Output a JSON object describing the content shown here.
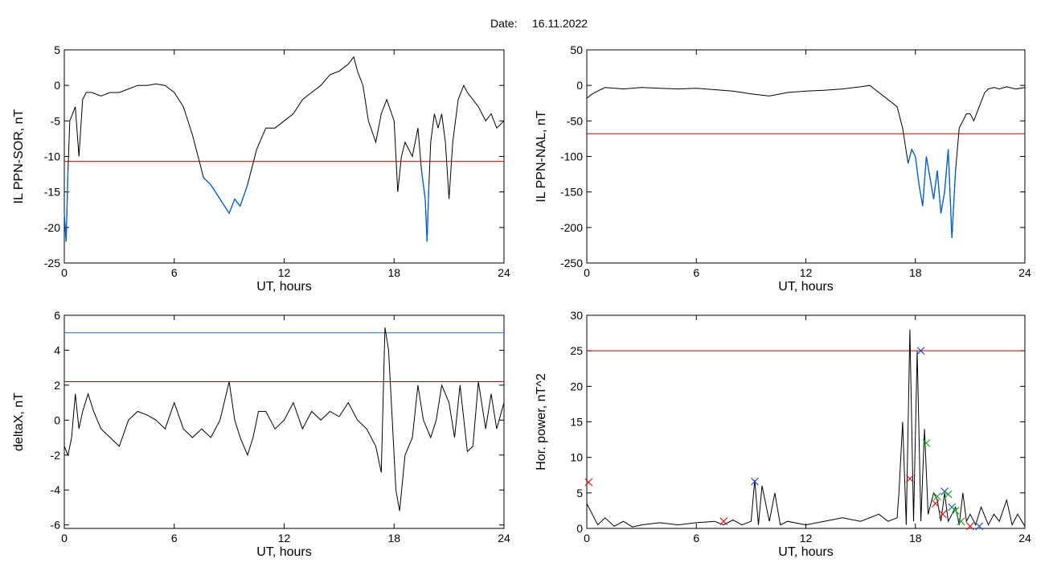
{
  "header": {
    "date_label": "Date:",
    "date_value": "16.11.2022"
  },
  "colors": {
    "trace": "#000000",
    "highlight": "#0060d0",
    "threshold_red": "#d00000",
    "threshold_blue": "#1f6fd0",
    "marker_green": "#22aa22",
    "marker_red": "#cc2222",
    "marker_blue": "#2255cc"
  },
  "chart_data": [
    {
      "type": "line",
      "title": "",
      "xlabel": "UT, hours",
      "ylabel": "IL PPN-SOR, nT",
      "xlim": [
        0,
        24
      ],
      "ylim": [
        -25,
        5
      ],
      "xticks": [
        0,
        6,
        12,
        18,
        24
      ],
      "yticks": [
        -25,
        -20,
        -15,
        -10,
        -5,
        0,
        5
      ],
      "grid": false,
      "threshold": {
        "y": -10.7,
        "color": "red"
      },
      "highlight_below": -10.7,
      "series": [
        {
          "x": [
            0,
            0.1,
            0.2,
            0.3,
            0.45,
            0.6,
            0.8,
            1.0,
            1.2,
            1.5,
            2,
            2.5,
            3,
            3.5,
            4,
            4.5,
            5,
            5.5,
            6,
            6.5,
            7,
            7.3,
            7.6,
            8,
            8.5,
            9,
            9.3,
            9.6,
            10,
            10.5,
            11,
            11.5,
            12,
            12.5,
            13,
            13.5,
            14,
            14.5,
            15,
            15.5,
            15.8,
            16,
            16.3,
            16.6,
            17,
            17.3,
            17.6,
            18,
            18.2,
            18.4,
            18.6,
            19,
            19.3,
            19.5,
            19.7,
            19.8,
            19.9,
            20,
            20.2,
            20.4,
            20.6,
            20.8,
            21,
            21.2,
            21.5,
            21.8,
            22,
            22.3,
            22.6,
            23,
            23.3,
            23.6,
            24
          ],
          "y": [
            -18,
            -22,
            -12,
            -5,
            -4,
            -3,
            -10,
            -2,
            -1,
            -1,
            -1.5,
            -1,
            -1,
            -0.5,
            0,
            0,
            0.2,
            0,
            -1,
            -3,
            -7,
            -10,
            -13,
            -14,
            -16,
            -18,
            -16,
            -17,
            -14,
            -9,
            -6,
            -6,
            -5,
            -4,
            -2,
            -1,
            0,
            1.5,
            2,
            3,
            4,
            2,
            0,
            -5,
            -8,
            -4,
            -2,
            -5,
            -15,
            -10,
            -8,
            -10,
            -6,
            -12,
            -16,
            -22,
            -14,
            -8,
            -4,
            -6,
            -4,
            -8,
            -16,
            -8,
            -2,
            0,
            -1,
            -2,
            -3,
            -5,
            -4,
            -6,
            -5
          ]
        }
      ]
    },
    {
      "type": "line",
      "title": "",
      "xlabel": "UT, hours",
      "ylabel": "IL PPN-NAL, nT",
      "xlim": [
        0,
        24
      ],
      "ylim": [
        -250,
        50
      ],
      "xticks": [
        0,
        6,
        12,
        18,
        24
      ],
      "yticks": [
        -250,
        -200,
        -150,
        -100,
        -50,
        0,
        50
      ],
      "grid": false,
      "threshold": {
        "y": -68,
        "color": "red"
      },
      "highlight_below": -68,
      "series": [
        {
          "x": [
            0,
            0.3,
            0.6,
            1,
            2,
            3,
            4,
            5,
            6,
            7,
            8,
            8.5,
            9,
            10,
            11,
            12,
            13,
            14,
            15,
            15.5,
            16,
            16.5,
            17,
            17.3,
            17.6,
            17.8,
            18,
            18.2,
            18.4,
            18.6,
            18.8,
            19,
            19.2,
            19.4,
            19.6,
            19.8,
            20,
            20.2,
            20.4,
            20.6,
            20.8,
            21,
            21.2,
            21.5,
            21.8,
            22,
            22.3,
            22.6,
            23,
            23.5,
            24
          ],
          "y": [
            -18,
            -12,
            -8,
            -3,
            -5,
            -3,
            -4,
            -5,
            -4,
            -6,
            -8,
            -10,
            -12,
            -15,
            -10,
            -8,
            -7,
            -5,
            -2,
            0,
            -10,
            -20,
            -30,
            -60,
            -110,
            -90,
            -100,
            -140,
            -170,
            -100,
            -130,
            -160,
            -120,
            -180,
            -150,
            -90,
            -215,
            -120,
            -60,
            -50,
            -40,
            -40,
            -50,
            -30,
            -10,
            -5,
            -3,
            -5,
            -2,
            -5,
            -3
          ]
        }
      ]
    },
    {
      "type": "line",
      "title": "",
      "xlabel": "UT, hours",
      "ylabel": "deltaX, nT",
      "xlim": [
        0,
        24
      ],
      "ylim": [
        -6.2,
        6
      ],
      "xticks": [
        0,
        6,
        12,
        18,
        24
      ],
      "yticks": [
        -6,
        -4,
        -2,
        0,
        2,
        4,
        6
      ],
      "grid": false,
      "thresholds": [
        {
          "y": 5.0,
          "color": "blue"
        },
        {
          "y": 2.2,
          "color": "red"
        }
      ],
      "series": [
        {
          "x": [
            0,
            0.2,
            0.4,
            0.6,
            0.8,
            1,
            1.3,
            1.6,
            2,
            2.5,
            3,
            3.5,
            4,
            4.5,
            5,
            5.5,
            6,
            6.5,
            7,
            7.5,
            8,
            8.5,
            9,
            9.3,
            9.6,
            10,
            10.3,
            10.6,
            11,
            11.5,
            12,
            12.5,
            13,
            13.5,
            14,
            14.5,
            15,
            15.5,
            16,
            16.5,
            17,
            17.3,
            17.5,
            17.7,
            17.9,
            18.1,
            18.3,
            18.6,
            19,
            19.3,
            19.6,
            20,
            20.3,
            20.6,
            21,
            21.3,
            21.6,
            22,
            22.3,
            22.6,
            23,
            23.3,
            23.6,
            24
          ],
          "y": [
            -1.5,
            -2,
            -1,
            1.5,
            -0.5,
            0.5,
            1.5,
            0.5,
            -0.5,
            -1,
            -1.5,
            0,
            0.5,
            0.3,
            0,
            -0.5,
            1,
            -0.5,
            -1,
            -0.5,
            -1,
            0,
            2.2,
            0,
            -1,
            -2,
            -1,
            0.5,
            0.5,
            -0.5,
            0,
            1,
            -0.5,
            0.5,
            0,
            0.5,
            0.2,
            1,
            0,
            -0.5,
            -1.5,
            -3,
            5.3,
            4,
            0,
            -4,
            -5.2,
            -2,
            -1,
            2,
            0,
            -1,
            0,
            2,
            1,
            -1,
            2,
            -1.8,
            -1.5,
            2.2,
            -0.5,
            1.5,
            -0.5,
            1
          ]
        }
      ]
    },
    {
      "type": "line",
      "title": "",
      "xlabel": "UT, hours",
      "ylabel": "Hor. power, nT^2",
      "xlim": [
        0,
        24
      ],
      "ylim": [
        0,
        30
      ],
      "xticks": [
        0,
        6,
        12,
        18,
        24
      ],
      "yticks": [
        0,
        5,
        10,
        15,
        20,
        25,
        30
      ],
      "grid": false,
      "threshold": {
        "y": 25,
        "color": "red"
      },
      "series": [
        {
          "x": [
            0,
            0.3,
            0.6,
            1,
            1.5,
            2,
            2.5,
            3,
            4,
            5,
            6,
            7,
            7.5,
            8,
            8.5,
            9,
            9.2,
            9.4,
            9.6,
            10,
            10.3,
            10.6,
            11,
            12,
            13,
            14,
            15,
            16,
            16.5,
            17,
            17.1,
            17.3,
            17.5,
            17.7,
            17.9,
            18.1,
            18.3,
            18.5,
            18.7,
            19,
            19.2,
            19.4,
            19.6,
            19.8,
            20,
            20.2,
            20.4,
            20.6,
            20.8,
            21,
            21.3,
            21.6,
            22,
            22.3,
            22.6,
            23,
            23.3,
            23.6,
            24
          ],
          "y": [
            3.5,
            2,
            0.5,
            1.5,
            0.3,
            1,
            0.2,
            0.5,
            0.8,
            0.5,
            0.8,
            1,
            0.5,
            1.2,
            0.5,
            1,
            6.8,
            0.5,
            6,
            1,
            5,
            0.5,
            1,
            0.5,
            1,
            1.5,
            1,
            2,
            1,
            1.5,
            5,
            15,
            0.5,
            28,
            1,
            25,
            1,
            14,
            2,
            5,
            4,
            1,
            5,
            1,
            2,
            3,
            0.5,
            5,
            1,
            2,
            0.5,
            3,
            0.5,
            2,
            1,
            4,
            0.5,
            2,
            0.3
          ]
        }
      ],
      "markers": [
        {
          "x": 0.1,
          "y": 6.5,
          "color": "red"
        },
        {
          "x": 7.5,
          "y": 1.0,
          "color": "red"
        },
        {
          "x": 9.2,
          "y": 6.6,
          "color": "blue"
        },
        {
          "x": 17.7,
          "y": 7.0,
          "color": "red"
        },
        {
          "x": 18.3,
          "y": 25.0,
          "color": "blue"
        },
        {
          "x": 18.6,
          "y": 12.0,
          "color": "green"
        },
        {
          "x": 19.1,
          "y": 3.5,
          "color": "red"
        },
        {
          "x": 19.2,
          "y": 4.5,
          "color": "green"
        },
        {
          "x": 19.5,
          "y": 2.0,
          "color": "red"
        },
        {
          "x": 19.6,
          "y": 5.2,
          "color": "blue"
        },
        {
          "x": 19.8,
          "y": 4.8,
          "color": "green"
        },
        {
          "x": 20.0,
          "y": 3.0,
          "color": "blue"
        },
        {
          "x": 20.2,
          "y": 2.5,
          "color": "green"
        },
        {
          "x": 20.5,
          "y": 1.0,
          "color": "green"
        },
        {
          "x": 21.0,
          "y": 0.3,
          "color": "red"
        },
        {
          "x": 21.5,
          "y": 0.3,
          "color": "blue"
        }
      ]
    }
  ]
}
